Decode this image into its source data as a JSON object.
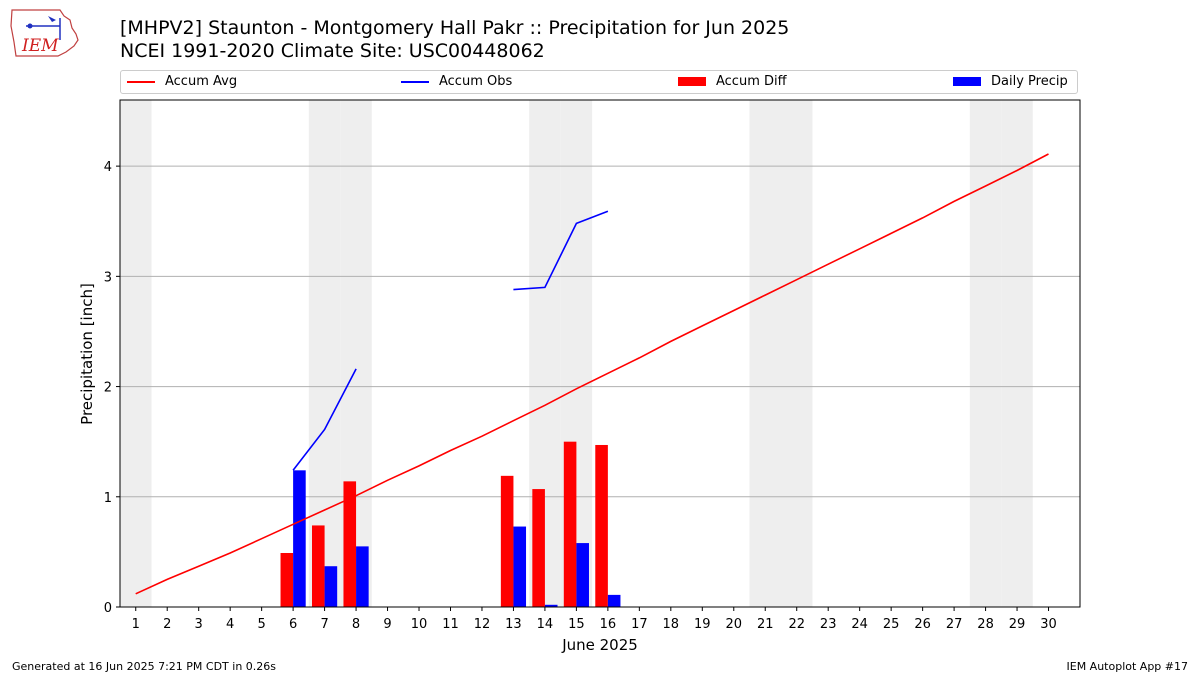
{
  "title_line1": "[MHPV2] Staunton - Montgomery Hall Pakr :: Precipitation for Jun 2025",
  "title_line2": "NCEI 1991-2020 Climate Site: USC00448062",
  "logo_text": "IEM",
  "footer_left": "Generated at 16 Jun 2025 7:21 PM CDT in 0.26s",
  "footer_right": "IEM Autoplot App #17",
  "colors": {
    "avg": "#ff0000",
    "obs": "#0000ff",
    "diff": "#ff0000",
    "daily": "#0000ff",
    "weekend": "#eeeeee",
    "grid": "#b0b0b0"
  },
  "chart_data": {
    "type": "bar",
    "xlabel": "June 2025",
    "ylabel": "Precipitation [inch]",
    "xlim": [
      0.5,
      31
    ],
    "ylim": [
      0,
      4.6
    ],
    "yticks": [
      0,
      1,
      2,
      3,
      4
    ],
    "grid": "y",
    "legend_position": "top",
    "days": [
      1,
      2,
      3,
      4,
      5,
      6,
      7,
      8,
      9,
      10,
      11,
      12,
      13,
      14,
      15,
      16,
      17,
      18,
      19,
      20,
      21,
      22,
      23,
      24,
      25,
      26,
      27,
      28,
      29,
      30
    ],
    "weekend_days": [
      1,
      7,
      8,
      14,
      15,
      21,
      22,
      28,
      29
    ],
    "legend": [
      "Accum Avg",
      "Accum Obs",
      "Accum Diff",
      "Daily Precip"
    ],
    "series": [
      {
        "name": "Accum Avg",
        "kind": "line",
        "values": [
          0.12,
          0.25,
          0.37,
          0.49,
          0.62,
          0.75,
          0.88,
          1.01,
          1.15,
          1.28,
          1.42,
          1.55,
          1.69,
          1.83,
          1.98,
          2.12,
          2.26,
          2.41,
          2.55,
          2.69,
          2.83,
          2.97,
          3.11,
          3.25,
          3.39,
          3.53,
          3.68,
          3.82,
          3.96,
          4.11
        ]
      },
      {
        "name": "Accum Obs",
        "kind": "line",
        "values": [
          null,
          null,
          null,
          null,
          null,
          1.24,
          1.61,
          2.16,
          null,
          null,
          null,
          null,
          2.88,
          2.9,
          3.48,
          3.59,
          null,
          null,
          null,
          null,
          null,
          null,
          null,
          null,
          null,
          null,
          null,
          null,
          null,
          null
        ]
      },
      {
        "name": "Accum Diff",
        "kind": "bar",
        "values": [
          0,
          0,
          0,
          0,
          0,
          0.49,
          0.74,
          1.14,
          0,
          0,
          0,
          0,
          1.19,
          1.07,
          1.5,
          1.47,
          0,
          0,
          0,
          0,
          0,
          0,
          0,
          0,
          0,
          0,
          0,
          0,
          0,
          0
        ]
      },
      {
        "name": "Daily Precip",
        "kind": "bar",
        "values": [
          0,
          0,
          0,
          0,
          0,
          1.24,
          0.37,
          0.55,
          0,
          0,
          0,
          0,
          0.73,
          0.02,
          0.58,
          0.11,
          0,
          0,
          0,
          0,
          0,
          0,
          0,
          0,
          0,
          0,
          0,
          0,
          0,
          0
        ]
      }
    ]
  }
}
